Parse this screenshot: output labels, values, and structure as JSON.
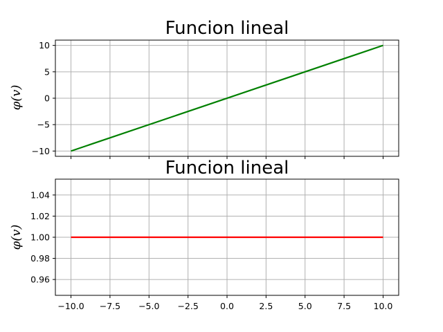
{
  "chart_data": [
    {
      "type": "line",
      "title": "Funcion lineal",
      "xlabel": "",
      "ylabel": "φ(v)",
      "xlim": [
        -11,
        11
      ],
      "ylim": [
        -11,
        11
      ],
      "x_ticks": [
        -10,
        -7.5,
        -5,
        -2.5,
        0,
        2.5,
        5,
        7.5,
        10
      ],
      "x_tick_labels_visible": false,
      "y_ticks": [
        -10,
        -5,
        0,
        5,
        10
      ],
      "y_tick_labels": [
        "−10",
        "−5",
        "0",
        "5",
        "10"
      ],
      "grid": true,
      "series": [
        {
          "color": "#008000",
          "x": [
            -10,
            10
          ],
          "y": [
            -10,
            10
          ]
        }
      ]
    },
    {
      "type": "line",
      "title": "Funcion lineal",
      "xlabel": "",
      "ylabel": "φ(v)",
      "xlim": [
        -11,
        11
      ],
      "ylim": [
        0.945,
        1.055
      ],
      "x_ticks": [
        -10,
        -7.5,
        -5,
        -2.5,
        0,
        2.5,
        5,
        7.5,
        10
      ],
      "x_tick_labels": [
        "−10.0",
        "−7.5",
        "−5.0",
        "−2.5",
        "0.0",
        "2.5",
        "5.0",
        "7.5",
        "10.0"
      ],
      "x_tick_labels_visible": true,
      "y_ticks": [
        0.96,
        0.98,
        1.0,
        1.02,
        1.04
      ],
      "y_tick_labels": [
        "0.96",
        "0.98",
        "1.00",
        "1.02",
        "1.04"
      ],
      "grid": true,
      "series": [
        {
          "color": "#ff0000",
          "x": [
            -10,
            10
          ],
          "y": [
            1,
            1
          ]
        }
      ]
    }
  ]
}
